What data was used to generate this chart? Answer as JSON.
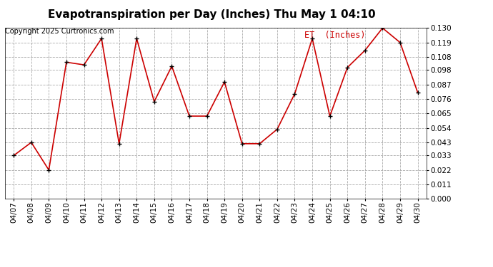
{
  "title": "Evapotranspiration per Day (Inches) Thu May 1 04:10",
  "copyright": "Copyright 2025 Curtronics.com",
  "legend_label": "ET  (Inches)",
  "dates": [
    "04/07",
    "04/08",
    "04/09",
    "04/10",
    "04/11",
    "04/12",
    "04/13",
    "04/14",
    "04/15",
    "04/16",
    "04/17",
    "04/18",
    "04/19",
    "04/20",
    "04/21",
    "04/22",
    "04/23",
    "04/24",
    "04/25",
    "04/26",
    "04/27",
    "04/28",
    "04/29",
    "04/30"
  ],
  "values": [
    0.033,
    0.043,
    0.022,
    0.104,
    0.102,
    0.122,
    0.042,
    0.122,
    0.074,
    0.101,
    0.063,
    0.063,
    0.089,
    0.042,
    0.042,
    0.053,
    0.08,
    0.122,
    0.063,
    0.1,
    0.113,
    0.13,
    0.119,
    0.081
  ],
  "line_color": "#cc0000",
  "marker_color": "#000000",
  "background_color": "#ffffff",
  "grid_color": "#aaaaaa",
  "ylim": [
    0.0,
    0.13
  ],
  "yticks": [
    0.0,
    0.011,
    0.022,
    0.033,
    0.043,
    0.054,
    0.065,
    0.076,
    0.087,
    0.098,
    0.108,
    0.119,
    0.13
  ],
  "title_fontsize": 11,
  "copyright_fontsize": 7,
  "legend_fontsize": 8.5,
  "tick_fontsize": 7.5,
  "line_width": 1.2,
  "marker_size": 5
}
